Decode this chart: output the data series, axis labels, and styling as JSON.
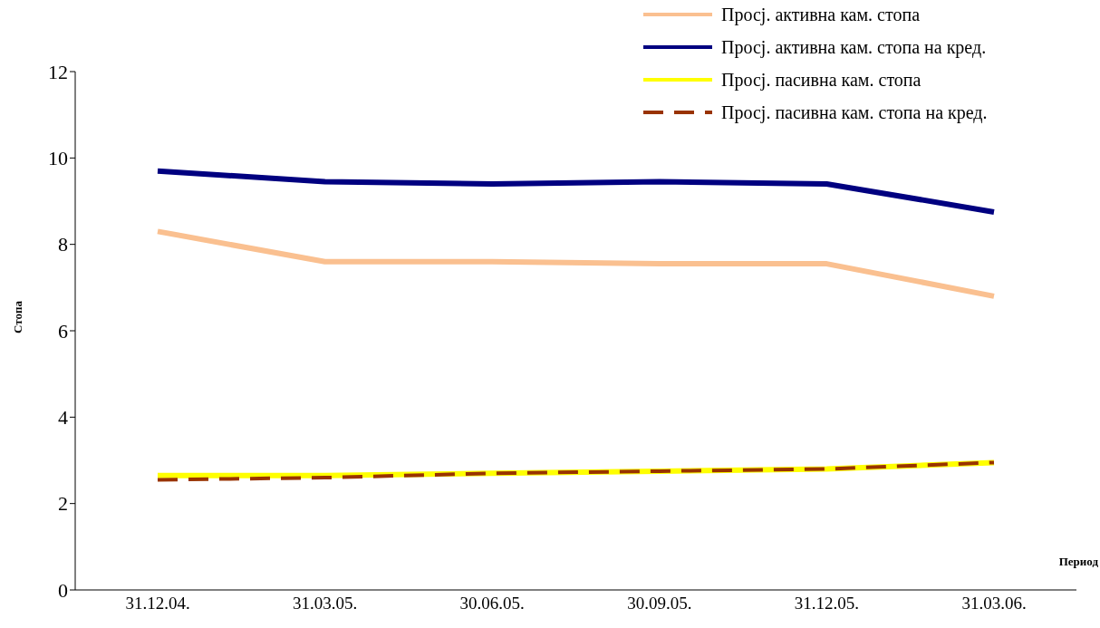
{
  "chart_data": {
    "type": "line",
    "xlabel": "Период",
    "ylabel": "Стопа",
    "categories": [
      "31.12.04.",
      "31.03.05.",
      "30.06.05.",
      "30.09.05.",
      "31.12.05.",
      "31.03.06."
    ],
    "series": [
      {
        "name": "Просј. активна кам. стопа",
        "color": "#fac090",
        "values": [
          8.3,
          7.6,
          7.6,
          7.55,
          7.55,
          6.8
        ]
      },
      {
        "name": "Просј. активна кам. стопа на кред.",
        "color": "#000080",
        "values": [
          9.7,
          9.45,
          9.4,
          9.45,
          9.4,
          8.75
        ]
      },
      {
        "name": "Просј. пасивна кам. стопа",
        "color": "#ffff00",
        "values": [
          2.65,
          2.65,
          2.7,
          2.75,
          2.8,
          2.95
        ]
      },
      {
        "name": "Просј. пасивна кам. стопа на кред.",
        "color": "#993300",
        "line_style": "dashed",
        "values": [
          2.55,
          2.6,
          2.7,
          2.75,
          2.8,
          2.95
        ]
      }
    ],
    "ylim": [
      0,
      12
    ],
    "yticks": [
      0,
      2,
      4,
      6,
      8,
      10,
      12
    ],
    "grid": false,
    "legend": "top right",
    "marker": "none"
  }
}
